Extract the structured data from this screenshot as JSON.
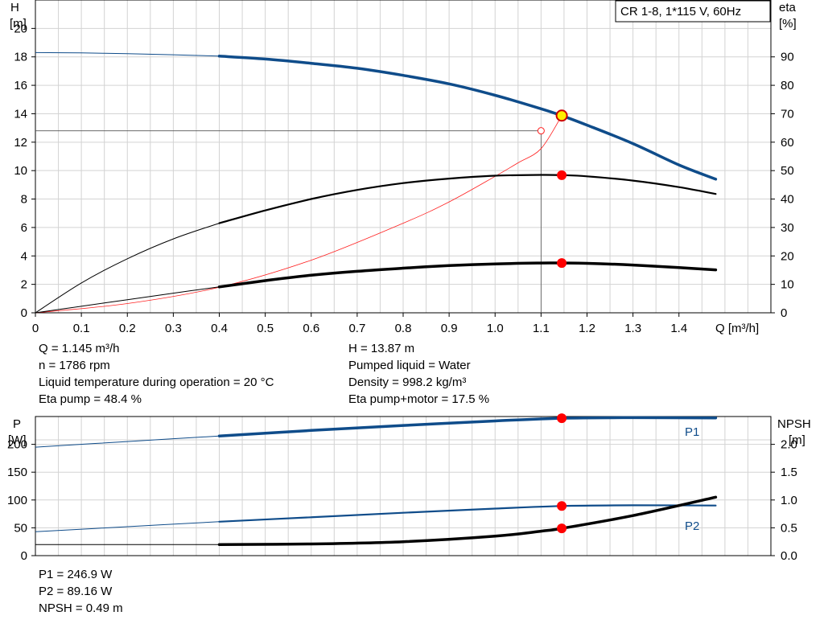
{
  "chart_data": [
    {
      "type": "line",
      "title": "CR 1-8, 1*115 V, 60Hz",
      "xlabel": "Q [m³/h]",
      "ylabel": "H [m]",
      "y2label": "eta [%]",
      "x_ticks": [
        "0",
        "0.1",
        "0.2",
        "0.3",
        "0.4",
        "0.5",
        "0.6",
        "0.7",
        "0.8",
        "0.9",
        "1.0",
        "1.1",
        "1.2",
        "1.3",
        "1.4"
      ],
      "y_ticks": [
        "0",
        "2",
        "4",
        "6",
        "8",
        "10",
        "12",
        "14",
        "16",
        "18",
        "20"
      ],
      "y2_ticks": [
        "0",
        "10",
        "20",
        "30",
        "40",
        "50",
        "60",
        "70",
        "80",
        "90"
      ],
      "xlim": [
        0,
        1.6
      ],
      "ylim": [
        0,
        22
      ],
      "y2lim": [
        0,
        110
      ],
      "grid": true,
      "colors": {
        "head": "#0f4c8a",
        "efficiency": "#000000",
        "system": "#ff2020",
        "duty_point": "#ff0000",
        "marker_fill": "#ffee00",
        "grid": "#d3d3d3"
      },
      "series": [
        {
          "key": "head",
          "axis": "left",
          "x": [
            0,
            0.1,
            0.2,
            0.3,
            0.4,
            0.5,
            0.6,
            0.7,
            0.8,
            0.9,
            1.0,
            1.1,
            1.145,
            1.2,
            1.3,
            1.4,
            1.48
          ],
          "values": [
            18.3,
            18.28,
            18.22,
            18.15,
            18.05,
            17.85,
            17.55,
            17.2,
            16.7,
            16.1,
            15.3,
            14.35,
            13.87,
            13.2,
            11.9,
            10.4,
            9.4
          ]
        },
        {
          "key": "eta_pump",
          "axis": "right",
          "x": [
            0,
            0.1,
            0.2,
            0.3,
            0.4,
            0.5,
            0.6,
            0.7,
            0.8,
            0.9,
            1.0,
            1.1,
            1.145,
            1.2,
            1.3,
            1.4,
            1.48
          ],
          "values": [
            0,
            10.5,
            19,
            26,
            31.5,
            36,
            40,
            43.2,
            45.6,
            47.2,
            48.2,
            48.5,
            48.4,
            48,
            46.5,
            44.2,
            41.8
          ]
        },
        {
          "key": "eta_total",
          "axis": "right",
          "x": [
            0,
            0.1,
            0.2,
            0.3,
            0.4,
            0.5,
            0.6,
            0.7,
            0.8,
            0.9,
            1.0,
            1.1,
            1.145,
            1.2,
            1.3,
            1.4,
            1.48
          ],
          "values": [
            0,
            2.3,
            4.6,
            6.9,
            9.1,
            11.3,
            13.2,
            14.6,
            15.7,
            16.6,
            17.2,
            17.5,
            17.5,
            17.4,
            16.8,
            15.9,
            15.1
          ]
        },
        {
          "key": "system",
          "axis": "left",
          "x": [
            0,
            0.2,
            0.4,
            0.6,
            0.8,
            0.9,
            1.0,
            1.05,
            1.1,
            1.145
          ],
          "values": [
            0,
            0.65,
            1.8,
            3.7,
            6.3,
            7.8,
            9.6,
            10.55,
            11.55,
            13.87
          ]
        }
      ],
      "duty_points": [
        {
          "x": 1.145,
          "y": 13.87,
          "axis": "left"
        },
        {
          "x": 1.145,
          "y": 48.4,
          "axis": "right"
        },
        {
          "x": 1.145,
          "y": 17.5,
          "axis": "right"
        }
      ],
      "setpoint": {
        "x": 1.1,
        "y": 12.8
      }
    },
    {
      "type": "line",
      "ylabel": "P [W]",
      "y2label": "NPSH [m]",
      "y_ticks": [
        "0",
        "50",
        "100",
        "150",
        "200"
      ],
      "y2_ticks": [
        "0.0",
        "0.5",
        "1.0",
        "1.5",
        "2.0"
      ],
      "xlim": [
        0,
        1.6
      ],
      "ylim": [
        0,
        250
      ],
      "y2lim": [
        0,
        2.5
      ],
      "grid": true,
      "series": [
        {
          "key": "p1",
          "name": "P1",
          "axis": "left",
          "x": [
            0,
            0.2,
            0.4,
            0.6,
            0.8,
            1.0,
            1.145,
            1.3,
            1.48
          ],
          "values": [
            195,
            205,
            215,
            225,
            234,
            242,
            246.9,
            248,
            247.5
          ]
        },
        {
          "key": "p2",
          "name": "P2",
          "axis": "left",
          "x": [
            0,
            0.2,
            0.4,
            0.6,
            0.8,
            1.0,
            1.145,
            1.3,
            1.48
          ],
          "values": [
            43,
            52,
            61,
            69,
            77,
            84.5,
            89.16,
            90.5,
            90
          ]
        },
        {
          "key": "npsh",
          "axis": "right",
          "x": [
            0,
            0.4,
            0.6,
            0.8,
            1.0,
            1.1,
            1.145,
            1.3,
            1.48
          ],
          "values": [
            0.2,
            0.2,
            0.21,
            0.25,
            0.35,
            0.44,
            0.49,
            0.72,
            1.05
          ]
        }
      ],
      "duty_points": [
        {
          "x": 1.145,
          "y": 246.9,
          "axis": "left"
        },
        {
          "x": 1.145,
          "y": 89.16,
          "axis": "left"
        },
        {
          "x": 1.145,
          "y": 0.49,
          "axis": "right"
        }
      ]
    }
  ],
  "info_top_left": [
    "Q = 1.145 m³/h",
    "n = 1786 rpm",
    "Liquid temperature during operation = 20 °C",
    "Eta pump = 48.4 %"
  ],
  "info_top_right": [
    "H = 13.87 m",
    "Pumped liquid = Water",
    "Density = 998.2 kg/m³",
    "Eta pump+motor = 17.5 %"
  ],
  "info_bottom": [
    "P1 = 246.9 W",
    "P2 = 89.16 W",
    "NPSH = 0.49 m"
  ]
}
